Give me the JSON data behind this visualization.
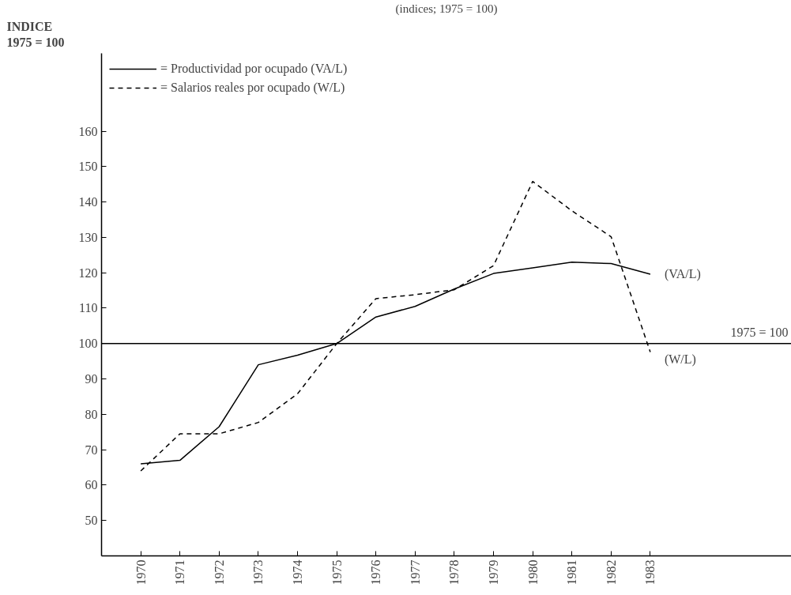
{
  "chart_data": {
    "type": "line",
    "title": "(indices; 1975 = 100)",
    "ylabel": "INDICE\n1975 = 100",
    "x": [
      1970,
      1971,
      1972,
      1973,
      1974,
      1975,
      1976,
      1977,
      1978,
      1979,
      1980,
      1981,
      1982,
      1983
    ],
    "series": [
      {
        "name": "= Productividad por ocupado (VA/L)",
        "color": "#000000",
        "line_style": "solid",
        "values": [
          66,
          67,
          76.5,
          94,
          96.7,
          100,
          107.5,
          110.5,
          115.4,
          119.8,
          121.4,
          123,
          122.6,
          119.6
        ]
      },
      {
        "name": "= Salarios reales por ocupado (W/L)",
        "color": "#000000",
        "line_style": "dashed",
        "values": [
          64,
          74.5,
          74.5,
          77.7,
          85.8,
          100,
          112.7,
          113.8,
          115.2,
          122,
          145.8,
          137.5,
          130.2,
          97.6
        ]
      }
    ],
    "xlim": [
      1969,
      1986.6
    ],
    "ylim": [
      40,
      182
    ],
    "xticks": [
      1970,
      1971,
      1972,
      1973,
      1974,
      1975,
      1976,
      1977,
      1978,
      1979,
      1980,
      1981,
      1982,
      1983
    ],
    "yticks": [
      50,
      60,
      70,
      80,
      90,
      100,
      110,
      120,
      130,
      140,
      150,
      160
    ],
    "ref_lines": [
      {
        "axis": "y",
        "value": 100,
        "label": "1975 = 100",
        "color": "#000000"
      }
    ],
    "annotations": [
      {
        "text": "(VA/L)",
        "x": 1983,
        "y": 119.6
      },
      {
        "text": "(W/L)",
        "x": 1983,
        "y": 97.6
      }
    ],
    "legend": "top left",
    "grid": false,
    "marker": "none"
  }
}
